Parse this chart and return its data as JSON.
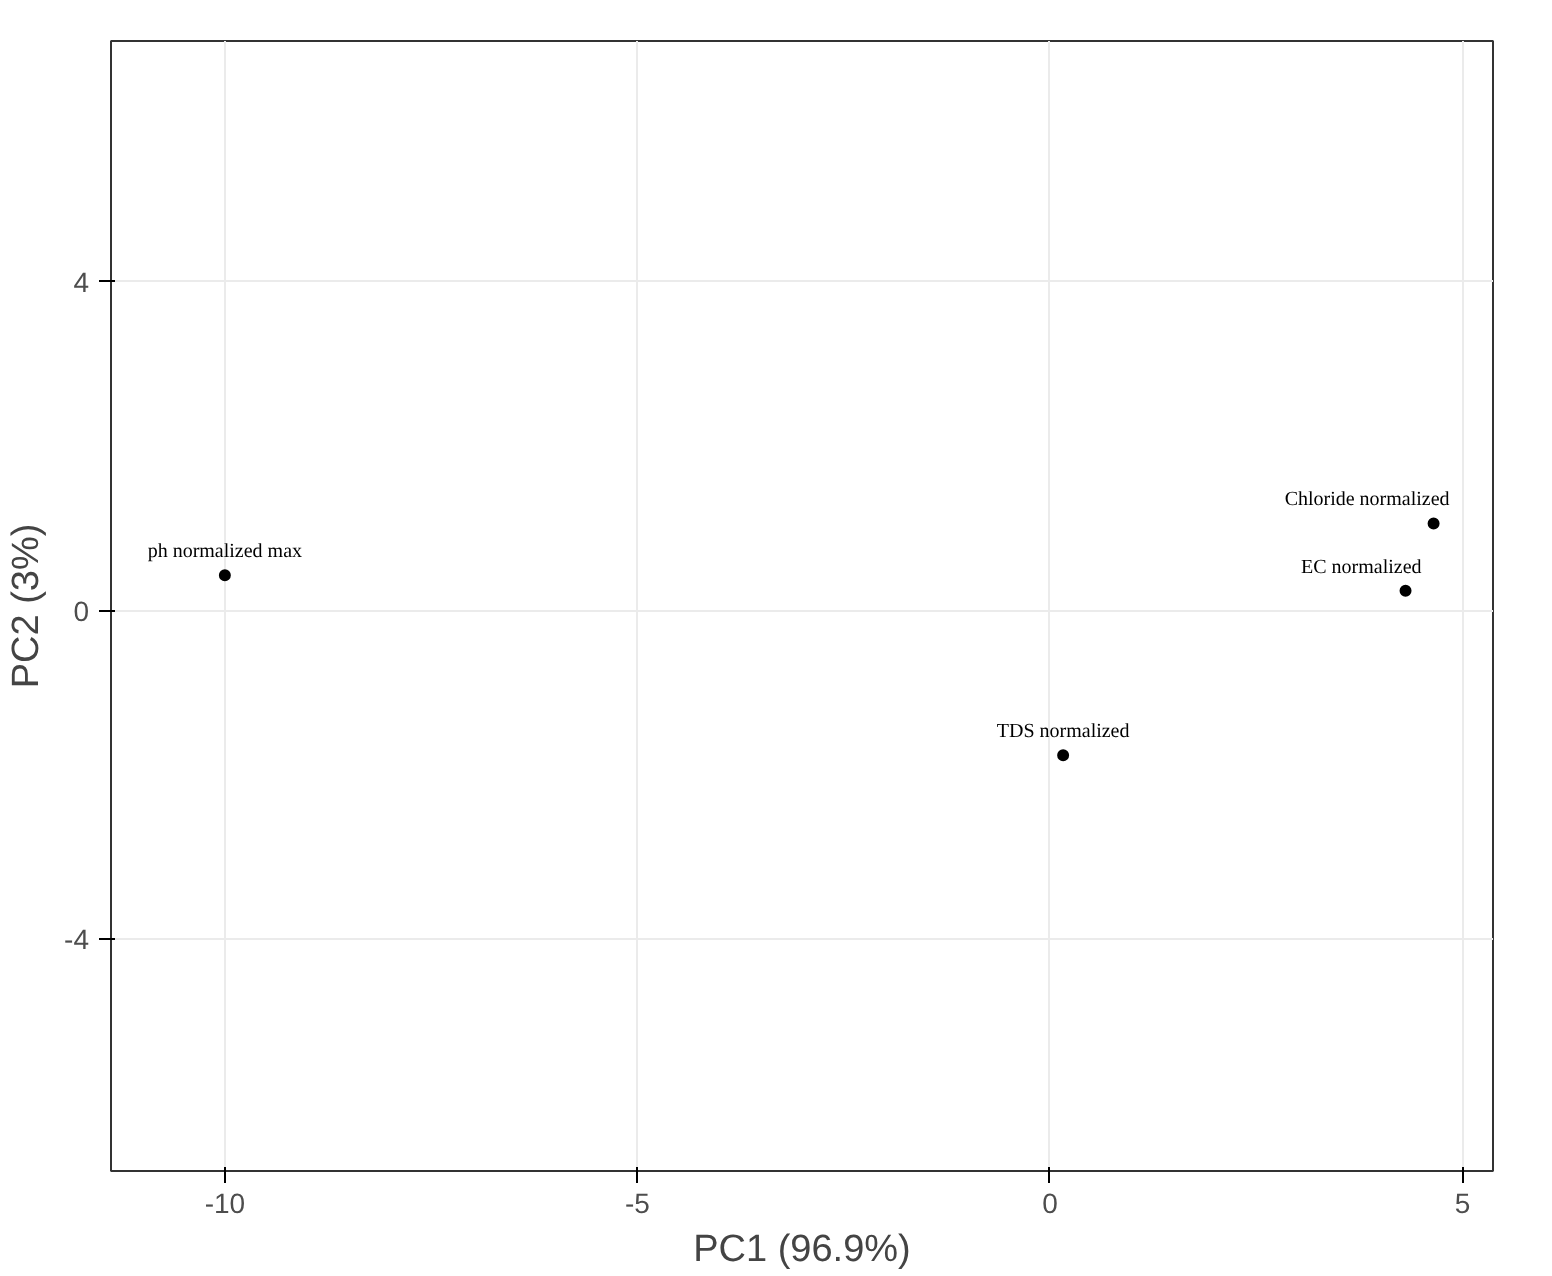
{
  "chart_data": {
    "type": "scatter",
    "xlabel": "PC1 (96.9%)",
    "ylabel": "PC2 (3%)",
    "x": [
      -10.0,
      0.16,
      4.31,
      4.65
    ],
    "series": [
      {
        "color": "#000000",
        "values": [
          0.43,
          -1.76,
          0.24,
          1.06
        ]
      }
    ],
    "annotations": [
      {
        "text": "ph normalized max",
        "x": -10.0,
        "y": 0.43
      },
      {
        "text": "TDS normalized",
        "x": 0.16,
        "y": -1.76
      },
      {
        "text": "EC normalized",
        "x": 4.31,
        "y": 0.24
      },
      {
        "text": "Chloride normalized",
        "x": 4.65,
        "y": 1.06
      }
    ],
    "xlim": [
      -11.38,
      5.37
    ],
    "ylim": [
      -6.82,
      6.93
    ],
    "xticks": [
      -10,
      -5,
      0,
      5
    ],
    "yticks": [
      -4,
      0,
      4
    ],
    "grid": true,
    "marker": "circle"
  }
}
